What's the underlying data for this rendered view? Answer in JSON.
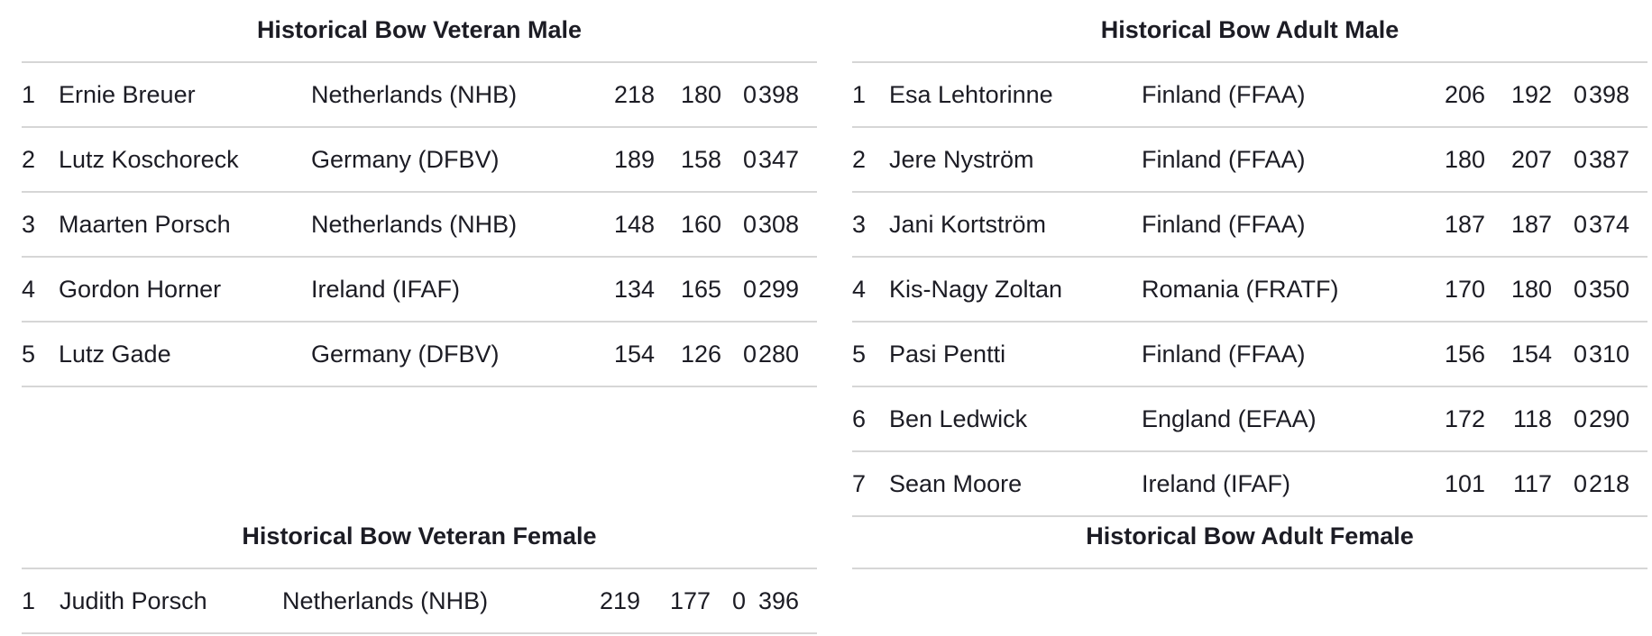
{
  "divisions": [
    {
      "title": "Historical Bow Veteran Male",
      "rows": [
        {
          "rank": "1",
          "name": "Ernie Breuer",
          "club": "Netherlands (NHB)",
          "s1": "218",
          "s2": "180",
          "s3": "0",
          "total": "398"
        },
        {
          "rank": "2",
          "name": "Lutz Koschoreck",
          "club": "Germany (DFBV)",
          "s1": "189",
          "s2": "158",
          "s3": "0",
          "total": "347"
        },
        {
          "rank": "3",
          "name": "Maarten Porsch",
          "club": "Netherlands (NHB)",
          "s1": "148",
          "s2": "160",
          "s3": "0",
          "total": "308"
        },
        {
          "rank": "4",
          "name": "Gordon Horner",
          "club": "Ireland (IFAF)",
          "s1": "134",
          "s2": "165",
          "s3": "0",
          "total": "299"
        },
        {
          "rank": "5",
          "name": "Lutz Gade",
          "club": "Germany (DFBV)",
          "s1": "154",
          "s2": "126",
          "s3": "0",
          "total": "280"
        }
      ]
    },
    {
      "title": "Historical Bow Adult Male",
      "rows": [
        {
          "rank": "1",
          "name": "Esa Lehtorinne",
          "club": "Finland (FFAA)",
          "s1": "206",
          "s2": "192",
          "s3": "0",
          "total": "398"
        },
        {
          "rank": "2",
          "name": "Jere Nyström",
          "club": "Finland (FFAA)",
          "s1": "180",
          "s2": "207",
          "s3": "0",
          "total": "387"
        },
        {
          "rank": "3",
          "name": "Jani Kortström",
          "club": "Finland (FFAA)",
          "s1": "187",
          "s2": "187",
          "s3": "0",
          "total": "374"
        },
        {
          "rank": "4",
          "name": "Kis-Nagy Zoltan",
          "club": "Romania (FRATF)",
          "s1": "170",
          "s2": "180",
          "s3": "0",
          "total": "350"
        },
        {
          "rank": "5",
          "name": "Pasi Pentti",
          "club": "Finland (FFAA)",
          "s1": "156",
          "s2": "154",
          "s3": "0",
          "total": "310"
        },
        {
          "rank": "6",
          "name": "Ben Ledwick",
          "club": "England (EFAA)",
          "s1": "172",
          "s2": "118",
          "s3": "0",
          "total": "290"
        },
        {
          "rank": "7",
          "name": "Sean Moore",
          "club": "Ireland (IFAF)",
          "s1": "101",
          "s2": "117",
          "s3": "0",
          "total": "218"
        }
      ]
    },
    {
      "title": "Historical Bow Veteran Female",
      "rows": [
        {
          "rank": "1",
          "name": "Judith Porsch",
          "club": "Netherlands (NHB)",
          "s1": "219",
          "s2": "177",
          "s3": "0",
          "total": "396"
        }
      ]
    },
    {
      "title": "Historical Bow Adult Female",
      "rows": []
    }
  ]
}
